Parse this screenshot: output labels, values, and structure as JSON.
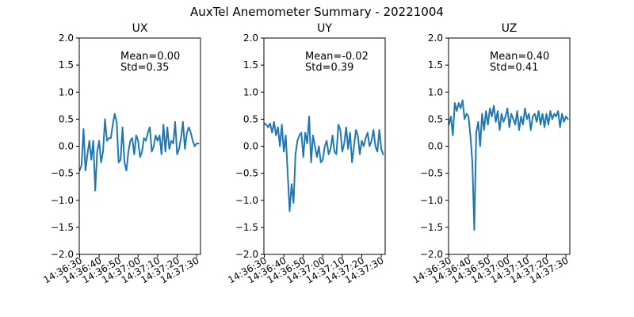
{
  "figure": {
    "suptitle": "AuxTel Anemometer Summary - 20221004"
  },
  "chart_data": [
    {
      "type": "line",
      "title": "UX",
      "xlabel": "",
      "ylabel": "",
      "series_color": "#1f77b4",
      "ylim": [
        -2.0,
        2.0
      ],
      "yticks": [
        -2.0,
        -1.5,
        -1.0,
        -0.5,
        0.0,
        0.5,
        1.0,
        1.5,
        2.0
      ],
      "ytick_labels": [
        "−2.0",
        "−1.5",
        "−1.0",
        "−0.5",
        "0.0",
        "0.5",
        "1.0",
        "1.5",
        "2.0"
      ],
      "xlim": [
        "14:36:30",
        "14:37:32"
      ],
      "xticks": [
        "14:36:30",
        "14:36:40",
        "14:36:50",
        "14:37:00",
        "14:37:10",
        "14:37:20",
        "14:37:30"
      ],
      "xtick_labels": [
        "14:36:30",
        "14:36:40",
        "14:36:50",
        "14:37:00",
        "14:37:10",
        "14:37:20",
        "14:37:30"
      ],
      "annotation": {
        "mean": "Mean=0.00",
        "std": "Std=0.35"
      },
      "series": [
        {
          "x": [
            "14:36:30",
            "14:36:31",
            "14:36:32",
            "14:36:33",
            "14:36:34",
            "14:36:35",
            "14:36:36",
            "14:36:37",
            "14:36:38",
            "14:36:39",
            "14:36:40",
            "14:36:41",
            "14:36:42",
            "14:36:43",
            "14:36:44",
            "14:36:45",
            "14:36:46",
            "14:36:47",
            "14:36:48",
            "14:36:49",
            "14:36:50",
            "14:36:51",
            "14:36:52",
            "14:36:53",
            "14:36:54",
            "14:36:55",
            "14:36:56",
            "14:36:57",
            "14:36:58",
            "14:36:59",
            "14:37:00",
            "14:37:01",
            "14:37:02",
            "14:37:03",
            "14:37:04",
            "14:37:05",
            "14:37:06",
            "14:37:07",
            "14:37:08",
            "14:37:09",
            "14:37:10",
            "14:37:11",
            "14:37:12",
            "14:37:13",
            "14:37:14",
            "14:37:15",
            "14:37:16",
            "14:37:17",
            "14:37:18",
            "14:37:19",
            "14:37:20",
            "14:37:21",
            "14:37:22",
            "14:37:23",
            "14:37:24",
            "14:37:25",
            "14:37:26",
            "14:37:27",
            "14:37:28",
            "14:37:29",
            "14:37:30",
            "14:37:31"
          ],
          "values": [
            -0.45,
            -0.35,
            0.32,
            -0.45,
            -0.15,
            0.1,
            -0.25,
            0.1,
            -0.82,
            -0.1,
            0.1,
            -0.3,
            -0.1,
            0.5,
            0.1,
            0.15,
            0.15,
            0.4,
            0.6,
            0.45,
            -0.3,
            -0.25,
            0.35,
            -0.3,
            -0.45,
            -0.1,
            0.1,
            0.15,
            -0.15,
            0.2,
            0.1,
            -0.2,
            -0.1,
            0.15,
            0.1,
            0.25,
            0.35,
            -0.1,
            0.0,
            0.2,
            0.1,
            0.2,
            -0.15,
            0.4,
            -0.1,
            0.35,
            -0.05,
            0.1,
            0.05,
            0.45,
            -0.15,
            -0.05,
            0.15,
            0.45,
            -0.05,
            0.25,
            0.35,
            0.25,
            0.1,
            0.0,
            0.05,
            0.05
          ]
        }
      ]
    },
    {
      "type": "line",
      "title": "UY",
      "xlabel": "",
      "ylabel": "",
      "series_color": "#1f77b4",
      "ylim": [
        -2.0,
        2.0
      ],
      "yticks": [
        -2.0,
        -1.5,
        -1.0,
        -0.5,
        0.0,
        0.5,
        1.0,
        1.5,
        2.0
      ],
      "ytick_labels": [
        "−2.0",
        "−1.5",
        "−1.0",
        "−0.5",
        "0.0",
        "0.5",
        "1.0",
        "1.5",
        "2.0"
      ],
      "xlim": [
        "14:36:30",
        "14:37:32"
      ],
      "xticks": [
        "14:36:30",
        "14:36:40",
        "14:36:50",
        "14:37:00",
        "14:37:10",
        "14:37:20",
        "14:37:30"
      ],
      "xtick_labels": [
        "14:36:30",
        "14:36:40",
        "14:36:50",
        "14:37:00",
        "14:37:10",
        "14:37:20",
        "14:37:30"
      ],
      "annotation": {
        "mean": "Mean=-0.02",
        "std": "Std=0.39"
      },
      "series": [
        {
          "x": [
            "14:36:30",
            "14:36:31",
            "14:36:32",
            "14:36:33",
            "14:36:34",
            "14:36:35",
            "14:36:36",
            "14:36:37",
            "14:36:38",
            "14:36:39",
            "14:36:40",
            "14:36:41",
            "14:36:42",
            "14:36:43",
            "14:36:44",
            "14:36:45",
            "14:36:46",
            "14:36:47",
            "14:36:48",
            "14:36:49",
            "14:36:50",
            "14:36:51",
            "14:36:52",
            "14:36:53",
            "14:36:54",
            "14:36:55",
            "14:36:56",
            "14:36:57",
            "14:36:58",
            "14:36:59",
            "14:37:00",
            "14:37:01",
            "14:37:02",
            "14:37:03",
            "14:37:04",
            "14:37:05",
            "14:37:06",
            "14:37:07",
            "14:37:08",
            "14:37:09",
            "14:37:10",
            "14:37:11",
            "14:37:12",
            "14:37:13",
            "14:37:14",
            "14:37:15",
            "14:37:16",
            "14:37:17",
            "14:37:18",
            "14:37:19",
            "14:37:20",
            "14:37:21",
            "14:37:22",
            "14:37:23",
            "14:37:24",
            "14:37:25",
            "14:37:26",
            "14:37:27",
            "14:37:28",
            "14:37:29",
            "14:37:30",
            "14:37:31"
          ],
          "values": [
            0.42,
            0.4,
            0.35,
            0.42,
            0.25,
            0.45,
            0.2,
            0.35,
            0.0,
            0.4,
            -0.1,
            0.2,
            -0.5,
            -1.2,
            -0.7,
            -1.05,
            -0.15,
            0.1,
            0.2,
            0.25,
            -0.2,
            0.25,
            0.05,
            0.55,
            -0.3,
            0.2,
            0.0,
            -0.2,
            0.0,
            -0.3,
            -0.25,
            0.0,
            0.1,
            -0.15,
            -0.05,
            0.2,
            -0.1,
            -0.15,
            0.4,
            0.3,
            -0.1,
            0.05,
            0.35,
            -0.05,
            0.25,
            -0.3,
            0.0,
            0.3,
            0.2,
            -0.15,
            0.1,
            0.0,
            0.15,
            0.25,
            0.0,
            0.1,
            0.3,
            0.0,
            -0.1,
            0.3,
            -0.05,
            -0.15
          ]
        }
      ]
    },
    {
      "type": "line",
      "title": "UZ",
      "xlabel": "",
      "ylabel": "",
      "series_color": "#1f77b4",
      "ylim": [
        -2.0,
        2.0
      ],
      "yticks": [
        -2.0,
        -1.5,
        -1.0,
        -0.5,
        0.0,
        0.5,
        1.0,
        1.5,
        2.0
      ],
      "ytick_labels": [
        "−2.0",
        "−1.5",
        "−1.0",
        "−0.5",
        "0.0",
        "0.5",
        "1.0",
        "1.5",
        "2.0"
      ],
      "xlim": [
        "14:36:30",
        "14:37:32"
      ],
      "xticks": [
        "14:36:30",
        "14:36:40",
        "14:36:50",
        "14:37:00",
        "14:37:10",
        "14:37:20",
        "14:37:30"
      ],
      "xtick_labels": [
        "14:36:30",
        "14:36:40",
        "14:36:50",
        "14:37:00",
        "14:37:10",
        "14:37:20",
        "14:37:30"
      ],
      "annotation": {
        "mean": "Mean=0.40",
        "std": "Std=0.41"
      },
      "series": [
        {
          "x": [
            "14:36:30",
            "14:36:31",
            "14:36:32",
            "14:36:33",
            "14:36:34",
            "14:36:35",
            "14:36:36",
            "14:36:37",
            "14:36:38",
            "14:36:39",
            "14:36:40",
            "14:36:41",
            "14:36:42",
            "14:36:43",
            "14:36:44",
            "14:36:45",
            "14:36:46",
            "14:36:47",
            "14:36:48",
            "14:36:49",
            "14:36:50",
            "14:36:51",
            "14:36:52",
            "14:36:53",
            "14:36:54",
            "14:36:55",
            "14:36:56",
            "14:36:57",
            "14:36:58",
            "14:36:59",
            "14:37:00",
            "14:37:01",
            "14:37:02",
            "14:37:03",
            "14:37:04",
            "14:37:05",
            "14:37:06",
            "14:37:07",
            "14:37:08",
            "14:37:09",
            "14:37:10",
            "14:37:11",
            "14:37:12",
            "14:37:13",
            "14:37:14",
            "14:37:15",
            "14:37:16",
            "14:37:17",
            "14:37:18",
            "14:37:19",
            "14:37:20",
            "14:37:21",
            "14:37:22",
            "14:37:23",
            "14:37:24",
            "14:37:25",
            "14:37:26",
            "14:37:27",
            "14:37:28",
            "14:37:29",
            "14:37:30",
            "14:37:31"
          ],
          "values": [
            0.4,
            0.55,
            0.2,
            0.8,
            0.65,
            0.8,
            0.7,
            0.85,
            0.5,
            0.6,
            0.55,
            0.2,
            -0.3,
            -1.55,
            0.25,
            0.45,
            0.0,
            0.6,
            0.3,
            0.65,
            0.4,
            0.7,
            0.55,
            0.75,
            0.45,
            0.65,
            0.3,
            0.6,
            0.45,
            0.55,
            0.7,
            0.35,
            0.6,
            0.5,
            0.4,
            0.65,
            0.3,
            0.55,
            0.4,
            0.7,
            0.5,
            0.6,
            0.3,
            0.55,
            0.6,
            0.45,
            0.65,
            0.4,
            0.6,
            0.35,
            0.6,
            0.4,
            0.65,
            0.5,
            0.6,
            0.55,
            0.65,
            0.35,
            0.6,
            0.45,
            0.55,
            0.5
          ]
        }
      ]
    }
  ]
}
